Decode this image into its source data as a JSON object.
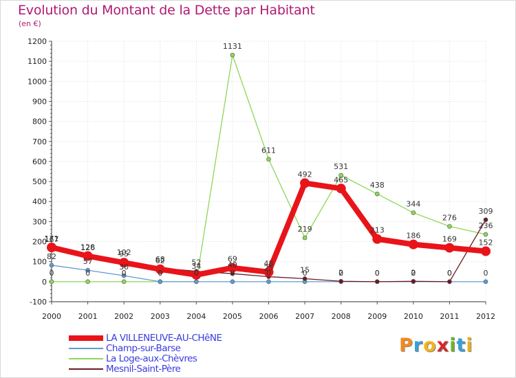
{
  "header": {
    "title": "Evolution du Montant de la Dette par Habitant",
    "subtitle": "(en €)"
  },
  "logo": {
    "text": "Proxiti",
    "letters": [
      "P",
      "r",
      "o",
      "x",
      "i",
      "t",
      "i"
    ],
    "colors": [
      "#f08a1e",
      "#36a0d8",
      "#f5b21b",
      "#d8262b",
      "#6cb52d",
      "#36a0d8",
      "#e8b01a"
    ]
  },
  "chart_data": {
    "type": "line",
    "title": "Evolution du Montant de la Dette par Habitant",
    "ylabel": "(en €)",
    "xlabel": "",
    "ylim": [
      -100,
      1200
    ],
    "yticks": [
      -100,
      0,
      100,
      200,
      300,
      400,
      500,
      600,
      700,
      800,
      900,
      1000,
      1100,
      1200
    ],
    "x": [
      2000,
      2001,
      2002,
      2003,
      2004,
      2005,
      2006,
      2007,
      2008,
      2009,
      2010,
      2011,
      2012
    ],
    "series": [
      {
        "name": "LA VILLENEUVE-AU-CHêNE",
        "color": "#e8141a",
        "values": [
          171,
          128,
          95,
          62,
          34,
          69,
          48,
          492,
          465,
          213,
          186,
          169,
          152
        ]
      },
      {
        "name": "Champ-sur-Barse",
        "color": "#5e9bd3",
        "values": [
          82,
          57,
          30,
          0,
          0,
          0,
          0,
          0,
          0,
          0,
          0,
          0,
          0
        ]
      },
      {
        "name": "La Loge-aux-Chèvres",
        "color": "#8ed657",
        "values": [
          0,
          0,
          0,
          0,
          0,
          1131,
          611,
          219,
          531,
          438,
          344,
          276,
          236
        ]
      },
      {
        "name": "Mesnil-Saint-Père",
        "color": "#6b1a22",
        "values": [
          167,
          126,
          102,
          68,
          52,
          40,
          25,
          15,
          2,
          0,
          2,
          0,
          309
        ]
      }
    ]
  }
}
